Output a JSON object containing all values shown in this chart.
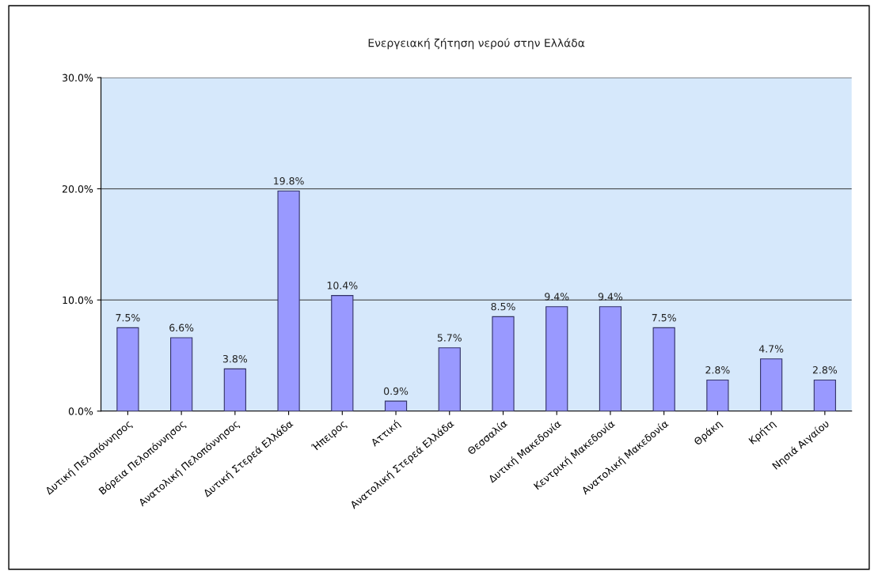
{
  "chart_data": {
    "type": "bar",
    "title": "Ενεργειακή ζήτηση νερού στην Ελλάδα",
    "categories": [
      "Δυτική Πελοπόννησος",
      "Βόρεια Πελοπόννησος",
      "Ανατολική Πελοπόννησος",
      "Δυτική Στερεά Ελλάδα",
      "Ήπειρος",
      "Αττική",
      "Ανατολική Στερεά Ελλάδα",
      "Θεσσαλία",
      "Δυτική Μακεδονία",
      "Κεντρική Μακεδονία",
      "Ανατολική Μακεδονία",
      "Θράκη",
      "Κρήτη",
      "Νησιά Αιγαίου"
    ],
    "values": [
      7.5,
      6.6,
      3.8,
      19.8,
      10.4,
      0.9,
      5.7,
      8.5,
      9.4,
      9.4,
      7.5,
      2.8,
      4.7,
      2.8
    ],
    "value_labels": [
      "7.5%",
      "6.6%",
      "3.8%",
      "19.8%",
      "10.4%",
      "0.9%",
      "5.7%",
      "8.5%",
      "9.4%",
      "9.4%",
      "7.5%",
      "2.8%",
      "4.7%",
      "2.8%"
    ],
    "color": "#9999ff",
    "ylim": [
      0,
      30
    ],
    "yticks": [
      {
        "value": 0,
        "label": "0.0%"
      },
      {
        "value": 10,
        "label": "10.0%"
      },
      {
        "value": 20,
        "label": "20.0%"
      },
      {
        "value": 30,
        "label": "30.0%"
      }
    ],
    "grid": "y",
    "legend": false
  }
}
